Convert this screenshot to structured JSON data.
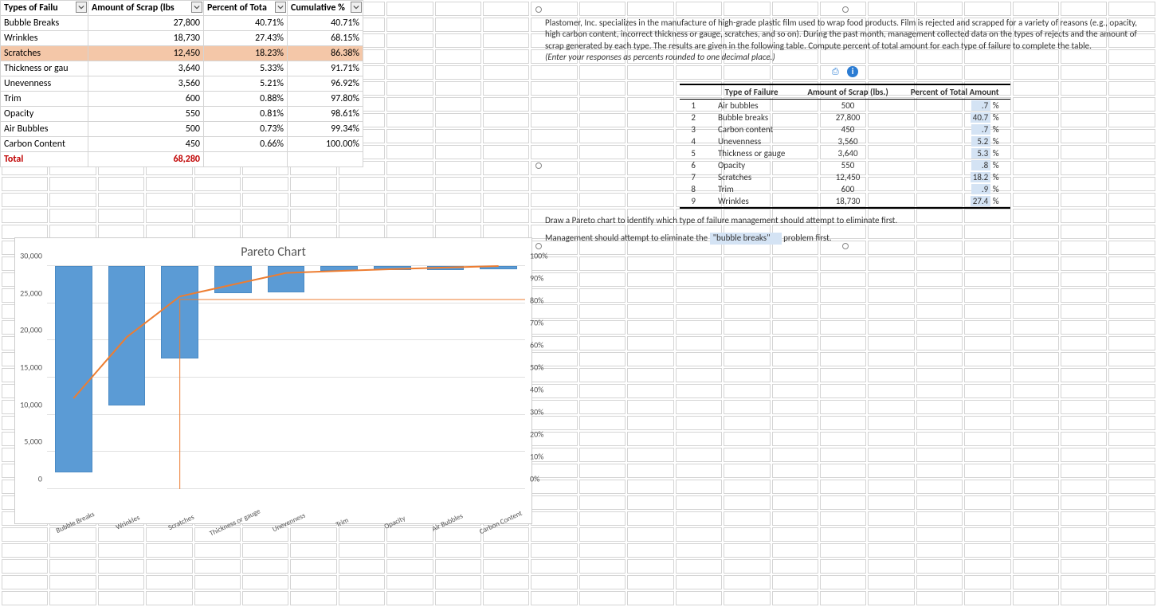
{
  "table": {
    "headers": [
      "Types of Failu",
      "Amount of Scrap (lbs",
      "Percent of Tota",
      "Cumulative %"
    ],
    "rows": [
      {
        "t": "Bubble Breaks",
        "a": "27,800",
        "p": "40.71%",
        "c": "40.71%",
        "hl": false
      },
      {
        "t": "Wrinkles",
        "a": "18,730",
        "p": "27.43%",
        "c": "68.15%",
        "hl": false
      },
      {
        "t": "Scratches",
        "a": "12,450",
        "p": "18.23%",
        "c": "86.38%",
        "hl": true
      },
      {
        "t": "Thickness or gau",
        "a": "3,640",
        "p": "5.33%",
        "c": "91.71%",
        "hl": false
      },
      {
        "t": "Unevenness",
        "a": "3,560",
        "p": "5.21%",
        "c": "96.92%",
        "hl": false
      },
      {
        "t": "Trim",
        "a": "600",
        "p": "0.88%",
        "c": "97.80%",
        "hl": false
      },
      {
        "t": "Opacity",
        "a": "550",
        "p": "0.81%",
        "c": "98.61%",
        "hl": false
      },
      {
        "t": "Air Bubbles",
        "a": "500",
        "p": "0.73%",
        "c": "99.34%",
        "hl": false
      },
      {
        "t": "Carbon Content",
        "a": "450",
        "p": "0.66%",
        "c": "100.00%",
        "hl": false
      }
    ],
    "total_label": "Total",
    "total_value": "68,280"
  },
  "chart": {
    "title": "Pareto Chart",
    "y_left_max": 30000,
    "y_left_ticks": [
      "0",
      "5,000",
      "10,000",
      "15,000",
      "20,000",
      "25,000",
      "30,000"
    ],
    "y_right_ticks": [
      "0%",
      "10%",
      "20%",
      "30%",
      "40%",
      "50%",
      "60%",
      "70%",
      "80%",
      "90%",
      "100%"
    ],
    "categories": [
      "Bubble Breaks",
      "Wrinkles",
      "Scratches",
      "Thickness or gauge",
      "Unevenness",
      "Trim",
      "Opacity",
      "Air Bubbles",
      "Carbon Content"
    ],
    "bar_values": [
      27800,
      18730,
      12450,
      3640,
      3560,
      600,
      550,
      500,
      450
    ],
    "cum_pct": [
      40.71,
      68.15,
      86.38,
      91.71,
      96.92,
      97.8,
      98.61,
      99.34,
      100.0
    ],
    "bar_color": "#5b9bd5",
    "line_color": "#ed7d31",
    "threshold_pct": 85,
    "threshold_cat_index": 2
  },
  "problem": {
    "intro": "Plastomer, Inc. specializes in the manufacture of high-grade plastic film used to wrap food products. Film is rejected and scrapped for a variety of reasons (e.g., opacity, high carbon content, incorrect thickness or gauge, scratches, and so on). During the past month, management collected data on the types of rejects and the amount of scrap generated by each type. The results are given in the following table. Compute percent of total amount for each type of failure to complete the table.",
    "note": "(Enter your responses as percents rounded to one decimal place.)",
    "table_headers": [
      "Type of Failure",
      "Amount of Scrap (lbs.)",
      "Percent of Total Amount"
    ],
    "rows": [
      {
        "n": "1",
        "t": "Air bubbles",
        "a": "500",
        "p": ".7"
      },
      {
        "n": "2",
        "t": "Bubble breaks",
        "a": "27,800",
        "p": "40.7"
      },
      {
        "n": "3",
        "t": "Carbon content",
        "a": "450",
        "p": ".7"
      },
      {
        "n": "4",
        "t": "Unevenness",
        "a": "3,560",
        "p": "5.2"
      },
      {
        "n": "5",
        "t": "Thickness or gauge",
        "a": "3,640",
        "p": "5.3"
      },
      {
        "n": "6",
        "t": "Opacity",
        "a": "550",
        "p": ".8"
      },
      {
        "n": "7",
        "t": "Scratches",
        "a": "12,450",
        "p": "18.2"
      },
      {
        "n": "8",
        "t": "Trim",
        "a": "600",
        "p": ".9"
      },
      {
        "n": "9",
        "t": "Wrinkles",
        "a": "18,730",
        "p": "27.4"
      }
    ],
    "question": "Draw a Pareto chart to identify which type of failure management should attempt to eliminate first.",
    "answer_lead": "Management should attempt to eliminate the",
    "answer_value": "\"bubble breaks\"",
    "answer_tail": "problem first."
  }
}
